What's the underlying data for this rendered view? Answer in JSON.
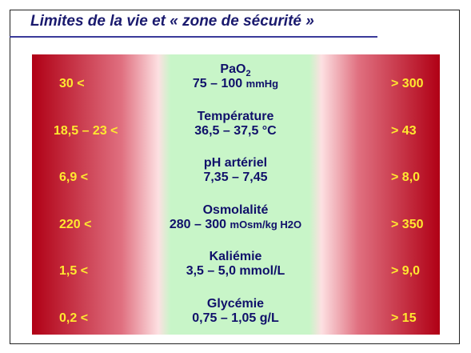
{
  "header": {
    "title": "Limites de la vie et « zone de sécurité »"
  },
  "rows": [
    {
      "low": "30 <",
      "name": "PaO",
      "name_sub": "2",
      "range": "75 – 100",
      "unit": "mmHg",
      "high": "> 300"
    },
    {
      "low": "18,5 – 23 <",
      "name": "Température",
      "range": "36,5 – 37,5 °C",
      "high": "> 43"
    },
    {
      "low": "6,9 <",
      "name": "pH artériel",
      "range": "7,35 – 7,45",
      "high": "> 8,0"
    },
    {
      "low": "220 <",
      "name": "Osmolalité",
      "range": "280 – 300",
      "unit": "mOsm/kg H2O",
      "high": "> 350"
    },
    {
      "low": "1,5 <",
      "name": "Kaliémie",
      "range": "3,5 – 5,0 mmol/L",
      "high": "> 9,0"
    },
    {
      "low": "0,2 <",
      "name": "Glycémie",
      "range": "0,75 – 1,05 g/L",
      "high": "> 15"
    }
  ]
}
